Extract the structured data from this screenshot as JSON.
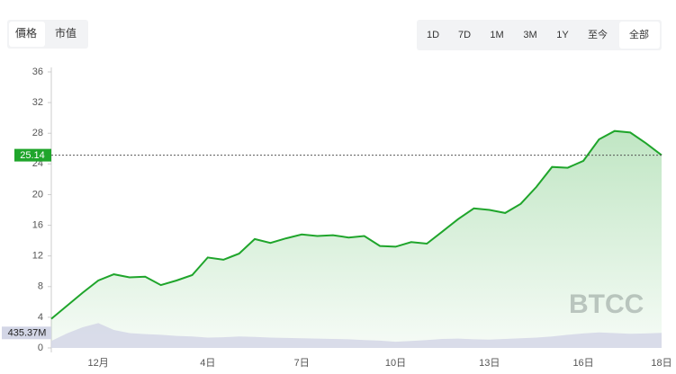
{
  "ui": {
    "tabs": [
      "價格",
      "市值"
    ],
    "ranges": [
      "1D",
      "7D",
      "1M",
      "3M",
      "1Y",
      "至今",
      "全部"
    ]
  },
  "chart_data": {
    "type": "line",
    "watermark": "BTCC",
    "categories": [
      null,
      null,
      null,
      "12月",
      null,
      null,
      null,
      null,
      null,
      null,
      "4日",
      null,
      null,
      null,
      null,
      null,
      "7日",
      null,
      null,
      null,
      null,
      null,
      "10日",
      null,
      null,
      null,
      null,
      null,
      "13日",
      null,
      null,
      null,
      null,
      null,
      "16日",
      null,
      null,
      null,
      null,
      "18日"
    ],
    "series": [
      {
        "color": "#1fa52b",
        "values": [
          3.8,
          5.5,
          7.2,
          8.8,
          9.6,
          9.2,
          9.3,
          8.2,
          8.8,
          9.5,
          11.8,
          11.5,
          12.3,
          14.2,
          13.7,
          14.3,
          14.8,
          14.6,
          14.7,
          14.4,
          14.6,
          13.3,
          13.2,
          13.8,
          13.6,
          15.2,
          16.8,
          18.2,
          18.0,
          17.6,
          18.8,
          21.0,
          23.6,
          23.5,
          24.4,
          27.2,
          28.3,
          28.1,
          26.7,
          25.14
        ]
      },
      {
        "axis": "y2",
        "color": "#d3d6e6",
        "values": [
          200,
          420,
          600,
          720,
          520,
          430,
          400,
          380,
          350,
          330,
          300,
          310,
          330,
          320,
          300,
          290,
          280,
          270,
          260,
          250,
          230,
          210,
          180,
          200,
          230,
          260,
          270,
          250,
          240,
          260,
          280,
          300,
          330,
          380,
          420,
          450,
          430,
          410,
          420,
          435.37
        ],
        "value_labels": [
          null,
          null,
          null,
          null,
          null,
          null,
          null,
          null,
          null,
          null,
          null,
          null,
          null,
          null,
          null,
          null,
          null,
          null,
          null,
          null,
          null,
          null,
          null,
          null,
          null,
          null,
          null,
          null,
          null,
          null,
          null,
          null,
          null,
          null,
          null,
          null,
          null,
          null,
          null,
          "435.37M"
        ]
      }
    ],
    "ylim": [
      0,
      36
    ],
    "yticks": [
      0,
      4,
      8,
      12,
      16,
      20,
      24,
      28,
      32,
      36
    ],
    "y2lim": [
      0,
      8000
    ],
    "grid": false
  }
}
